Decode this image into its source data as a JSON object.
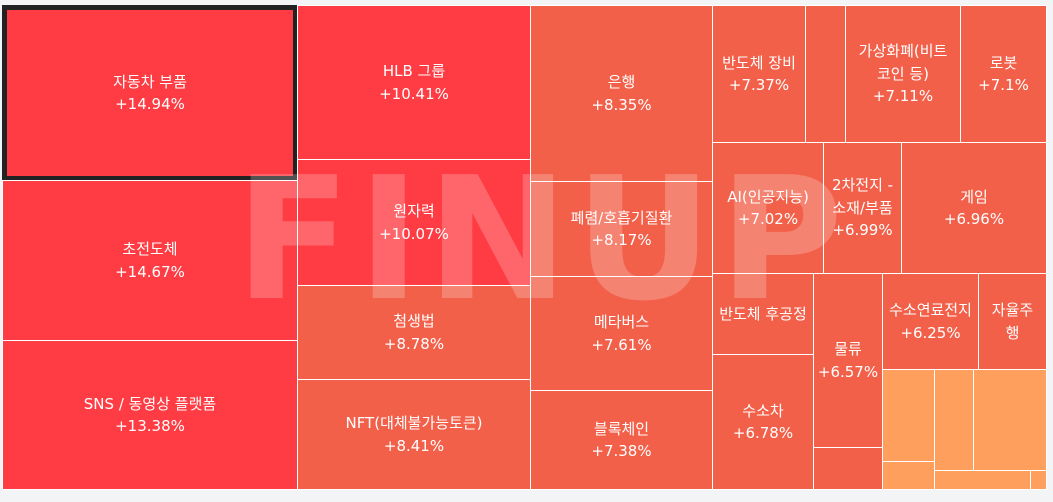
{
  "watermark": "FINUP",
  "colors": {
    "strong": "#ff3c43",
    "mid": "#f3604a",
    "light": "#ff9f5d",
    "selected_border": "#222222"
  },
  "chart_data": {
    "type": "treemap",
    "metric": "percent_change",
    "items": [
      {
        "name": "자동차 부품",
        "value": "+14.94%",
        "change": 14.94,
        "selected": true
      },
      {
        "name": "초전도체",
        "value": "+14.67%",
        "change": 14.67
      },
      {
        "name": "SNS / 동영상 플랫폼",
        "value": "+13.38%",
        "change": 13.38
      },
      {
        "name": "HLB 그룹",
        "value": "+10.41%",
        "change": 10.41
      },
      {
        "name": "원자력",
        "value": "+10.07%",
        "change": 10.07
      },
      {
        "name": "첨생법",
        "value": "+8.78%",
        "change": 8.78
      },
      {
        "name": "NFT(대체불가능토큰)",
        "value": "+8.41%",
        "change": 8.41
      },
      {
        "name": "은행",
        "value": "+8.35%",
        "change": 8.35
      },
      {
        "name": "폐렴/호흡기질환",
        "value": "+8.17%",
        "change": 8.17
      },
      {
        "name": "메타버스",
        "value": "+7.61%",
        "change": 7.61
      },
      {
        "name": "블록체인",
        "value": "+7.38%",
        "change": 7.38
      },
      {
        "name": "반도체 장비",
        "value": "+7.37%",
        "change": 7.37
      },
      {
        "name": "",
        "value": ""
      },
      {
        "name": "가상화폐(비트코인 등)",
        "value": "+7.11%",
        "change": 7.11
      },
      {
        "name": "로봇",
        "value": "+7.1%",
        "change": 7.1
      },
      {
        "name": "AI(인공지능)",
        "value": "+7.02%",
        "change": 7.02
      },
      {
        "name": "2차전지 - 소재/부품",
        "value": "+6.99%",
        "change": 6.99
      },
      {
        "name": "게임",
        "value": "+6.96%",
        "change": 6.96
      },
      {
        "name": "반도체 후공정",
        "value": "",
        "change": null
      },
      {
        "name": "물류",
        "value": "+6.57%",
        "change": 6.57
      },
      {
        "name": "수소연료전지",
        "value": "+6.25%",
        "change": 6.25
      },
      {
        "name": "자율주행",
        "value": "",
        "change": null
      },
      {
        "name": "수소차",
        "value": "+6.78%",
        "change": 6.78
      },
      {
        "name": "",
        "value": ""
      },
      {
        "name": "",
        "value": ""
      },
      {
        "name": "",
        "value": ""
      },
      {
        "name": "",
        "value": ""
      },
      {
        "name": "",
        "value": ""
      },
      {
        "name": "",
        "value": ""
      },
      {
        "name": "",
        "value": ""
      }
    ]
  }
}
